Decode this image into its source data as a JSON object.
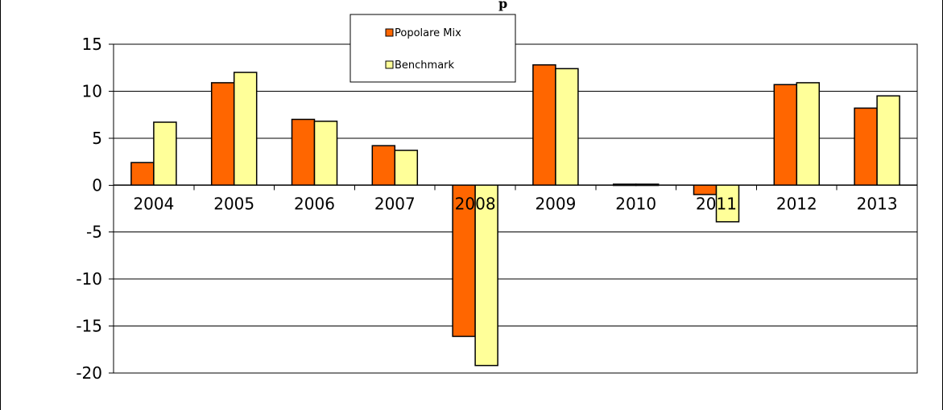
{
  "chart_data": {
    "type": "bar",
    "title": "",
    "visible_title_fragment": "p",
    "xlabel": "",
    "ylabel": "",
    "categories": [
      "2004",
      "2005",
      "2006",
      "2007",
      "2008",
      "2009",
      "2010",
      "2011",
      "2012",
      "2013"
    ],
    "series": [
      {
        "name": "Popolare Mix",
        "color": "#ff6600",
        "values": [
          2.4,
          10.9,
          7.0,
          4.2,
          -16.1,
          12.8,
          0.1,
          -1.0,
          10.7,
          8.2
        ]
      },
      {
        "name": "Benchmark",
        "color": "#ffff99",
        "values": [
          6.7,
          12.0,
          6.8,
          3.7,
          -19.2,
          12.4,
          0.1,
          -3.9,
          10.9,
          9.5
        ]
      }
    ],
    "ylim": [
      -20,
      15
    ],
    "yticks": [
      15,
      10,
      5,
      0,
      -5,
      -10,
      -15,
      -20
    ],
    "grid": "horizontal",
    "legend_position": "top-center"
  }
}
